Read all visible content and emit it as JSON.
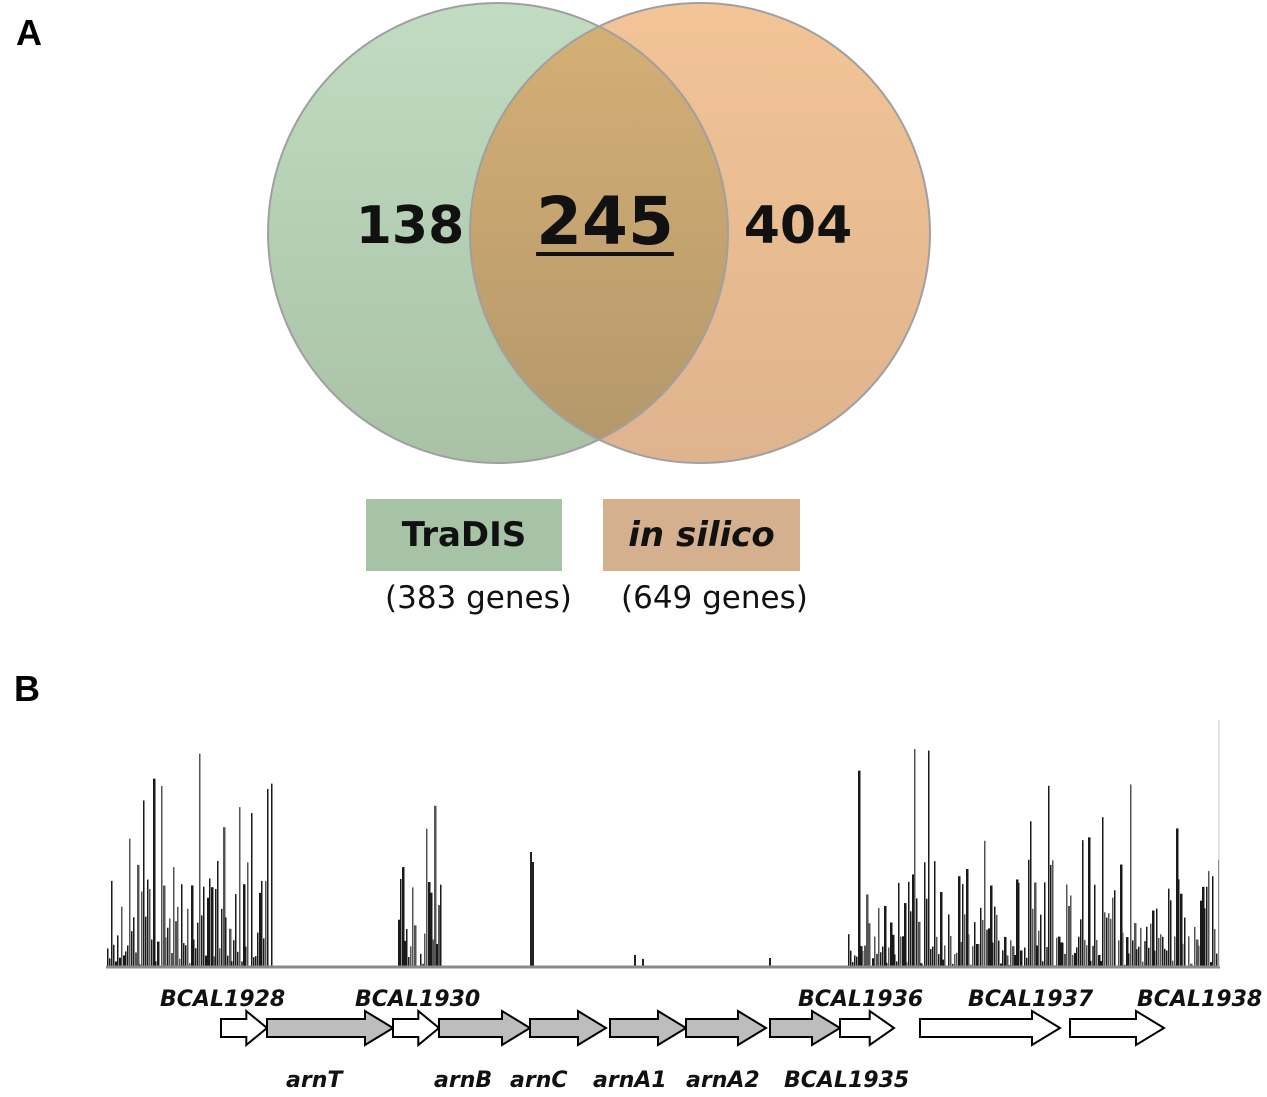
{
  "panels": {
    "a": "A",
    "b": "B"
  },
  "venn": {
    "left_only": "138",
    "intersection": "245",
    "right_only": "404",
    "left_fill": "#b5d1b4",
    "right_fill": "#ebb98e",
    "overlap_fill": "#c9a36d",
    "legend": [
      {
        "label": "TraDIS",
        "count": "(383 genes)",
        "color": "#a7c3a6"
      },
      {
        "label": "in silico",
        "count": "(649 genes)",
        "color": "#d4b08e"
      }
    ]
  },
  "genes": {
    "top_labels": [
      "BCAL1928",
      "BCAL1930",
      "BCAL1936",
      "BCAL1937",
      "BCAL1938"
    ],
    "bottom_labels": [
      "arnT",
      "arnB",
      "arnC",
      "arnA1",
      "arnA2",
      "BCAL1935"
    ],
    "arrow_colors": {
      "arn_operon": "#bdbdbd",
      "flanking": "#ffffff"
    }
  }
}
